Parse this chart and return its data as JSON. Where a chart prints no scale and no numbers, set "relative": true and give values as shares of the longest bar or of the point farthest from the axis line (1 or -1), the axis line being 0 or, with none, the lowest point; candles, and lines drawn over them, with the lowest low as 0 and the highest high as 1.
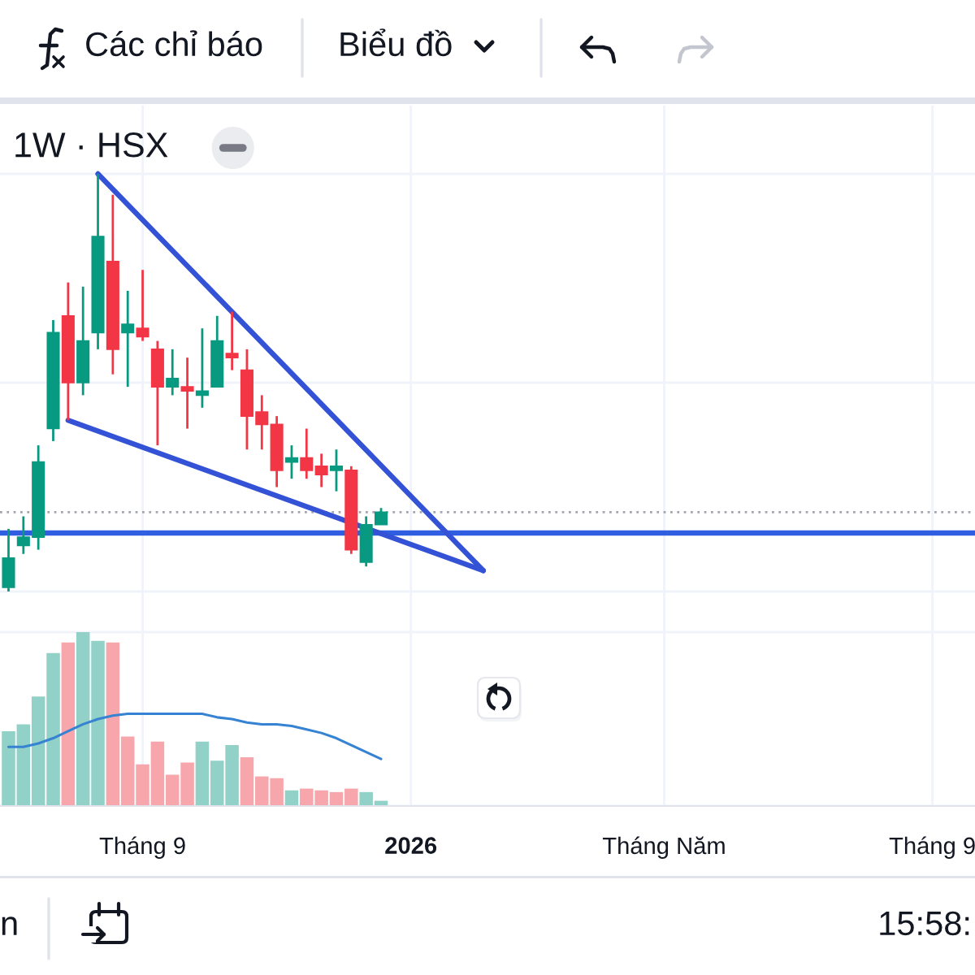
{
  "chart_data": [
    {
      "type": "candlestick",
      "title": "1W · HSX",
      "relative": true,
      "x": [
        "2025-06-30",
        "2025-07-07",
        "2025-07-14",
        "2025-07-21",
        "2025-07-28",
        "2025-08-04",
        "2025-08-11",
        "2025-08-18",
        "2025-08-25",
        "2025-09-01",
        "2025-09-08",
        "2025-09-15",
        "2025-09-22",
        "2025-09-29",
        "2025-10-06",
        "2025-10-13",
        "2025-10-20",
        "2025-10-27",
        "2025-11-03",
        "2025-11-10",
        "2025-11-17",
        "2025-11-24",
        "2025-12-01",
        "2025-12-08",
        "2025-12-15",
        "2025-12-22"
      ],
      "ohlc": [
        [
          0.01,
          0.15,
          0,
          0.08
        ],
        [
          0.11,
          0.18,
          0.09,
          0.13
        ],
        [
          0.13,
          0.35,
          0.1,
          0.31
        ],
        [
          0.39,
          0.65,
          0.36,
          0.62
        ],
        [
          0.66,
          0.74,
          0.41,
          0.5
        ],
        [
          0.5,
          0.73,
          0.47,
          0.6
        ],
        [
          0.62,
          1,
          0.58,
          0.85
        ],
        [
          0.79,
          0.95,
          0.52,
          0.58
        ],
        [
          0.62,
          0.72,
          0.49,
          0.64
        ],
        [
          0.63,
          0.77,
          0.6,
          0.61
        ],
        [
          0.58,
          0.6,
          0.35,
          0.49
        ],
        [
          0.49,
          0.58,
          0.47,
          0.51
        ],
        [
          0.49,
          0.56,
          0.39,
          0.48
        ],
        [
          0.47,
          0.63,
          0.44,
          0.48
        ],
        [
          0.49,
          0.66,
          0.49,
          0.6
        ],
        [
          0.57,
          0.67,
          0.53,
          0.56
        ],
        [
          0.53,
          0.58,
          0.34,
          0.42
        ],
        [
          0.43,
          0.47,
          0.34,
          0.4
        ],
        [
          0.4,
          0.42,
          0.25,
          0.29
        ],
        [
          0.31,
          0.35,
          0.27,
          0.32
        ],
        [
          0.32,
          0.39,
          0.27,
          0.29
        ],
        [
          0.3,
          0.33,
          0.25,
          0.28
        ],
        [
          0.29,
          0.34,
          0.24,
          0.3
        ],
        [
          0.29,
          0.3,
          0.09,
          0.1
        ],
        [
          0.07,
          0.18,
          0.06,
          0.16
        ],
        [
          0.16,
          0.2,
          0.16,
          0.19
        ]
      ],
      "colors": [
        "#089981",
        "#089981",
        "#089981",
        "#089981",
        "#f23645",
        "#089981",
        "#089981",
        "#f23645",
        "#089981",
        "#f23645",
        "#f23645",
        "#089981",
        "#f23645",
        "#089981",
        "#089981",
        "#f23645",
        "#f23645",
        "#f23645",
        "#f23645",
        "#089981",
        "#f23645",
        "#f23645",
        "#089981",
        "#f23645",
        "#089981",
        "#089981"
      ],
      "series": [
        {
          "type": "line",
          "x": [
            "2025-08-11",
            "2026-02-08"
          ],
          "values": [
            1,
            0.05
          ],
          "color": "#3352d6"
        },
        {
          "type": "line",
          "x": [
            "2025-07-28",
            "2026-02-08"
          ],
          "values": [
            0.41,
            0.05
          ],
          "color": "#3352d6"
        }
      ],
      "ref_lines": [
        {
          "axis": "y",
          "value": 0.14,
          "color": "#2f5fe0"
        },
        {
          "axis": "y",
          "value": 0.19,
          "color": "#a3a6af",
          "line_style": "dotted"
        }
      ],
      "xlim": [
        "2025-06-26",
        "2026-09-27"
      ],
      "xticks": [
        {
          "value": "2025-09-01",
          "label": null
        },
        {
          "value": "2026-01-05",
          "label": null
        },
        {
          "value": "2026-05-04",
          "label": null
        },
        {
          "value": "2026-09-07",
          "label": null
        }
      ],
      "grid": true,
      "tick_labels": false,
      "annotations": [
        "Các chỉ báo",
        "Biểu đồ"
      ]
    },
    {
      "type": "bar",
      "relative": true,
      "x": [
        "2025-06-30",
        "2025-07-07",
        "2025-07-14",
        "2025-07-21",
        "2025-07-28",
        "2025-08-04",
        "2025-08-11",
        "2025-08-18",
        "2025-08-25",
        "2025-09-01",
        "2025-09-08",
        "2025-09-15",
        "2025-09-22",
        "2025-09-29",
        "2025-10-06",
        "2025-10-13",
        "2025-10-20",
        "2025-10-27",
        "2025-11-03",
        "2025-11-10",
        "2025-11-17",
        "2025-11-24",
        "2025-12-01",
        "2025-12-08",
        "2025-12-15",
        "2025-12-22"
      ],
      "series": [
        {
          "type": "bar",
          "values": [
            0.43,
            0.47,
            0.63,
            0.88,
            0.94,
            1,
            0.95,
            0.94,
            0.4,
            0.24,
            0.37,
            0.18,
            0.25,
            0.37,
            0.26,
            0.35,
            0.28,
            0.17,
            0.16,
            0.09,
            0.1,
            0.09,
            0.08,
            0.1,
            0.08,
            0.03
          ],
          "colors": [
            "#91d1c7",
            "#91d1c7",
            "#91d1c7",
            "#91d1c7",
            "#f7a6ab",
            "#91d1c7",
            "#91d1c7",
            "#f7a6ab",
            "#f7a6ab",
            "#f7a6ab",
            "#f7a6ab",
            "#f7a6ab",
            "#f7a6ab",
            "#91d1c7",
            "#91d1c7",
            "#91d1c7",
            "#f7a6ab",
            "#f7a6ab",
            "#f7a6ab",
            "#91d1c7",
            "#f7a6ab",
            "#f7a6ab",
            "#f7a6ab",
            "#f7a6ab",
            "#91d1c7",
            "#91d1c7"
          ]
        },
        {
          "type": "line",
          "values": [
            0.34,
            0.34,
            0.36,
            0.39,
            0.43,
            0.47,
            0.5,
            0.52,
            0.53,
            0.53,
            0.53,
            0.53,
            0.53,
            0.53,
            0.51,
            0.5,
            0.48,
            0.47,
            0.47,
            0.46,
            0.44,
            0.42,
            0.39,
            0.35,
            0.31,
            0.27
          ],
          "color": "#3583d2"
        }
      ],
      "xlim": [
        "2025-06-26",
        "2026-09-27"
      ],
      "xticks": [
        {
          "value": "2025-09-01",
          "label": "Tháng 9"
        },
        {
          "value": "2026-01-05",
          "label": "2026"
        },
        {
          "value": "2026-05-04",
          "label": "Tháng Năm"
        },
        {
          "value": "2026-09-07",
          "label": "Tháng 9"
        }
      ],
      "grid": true,
      "tick_labels": "x",
      "annotations": [
        "n",
        "15:58:"
      ]
    }
  ]
}
